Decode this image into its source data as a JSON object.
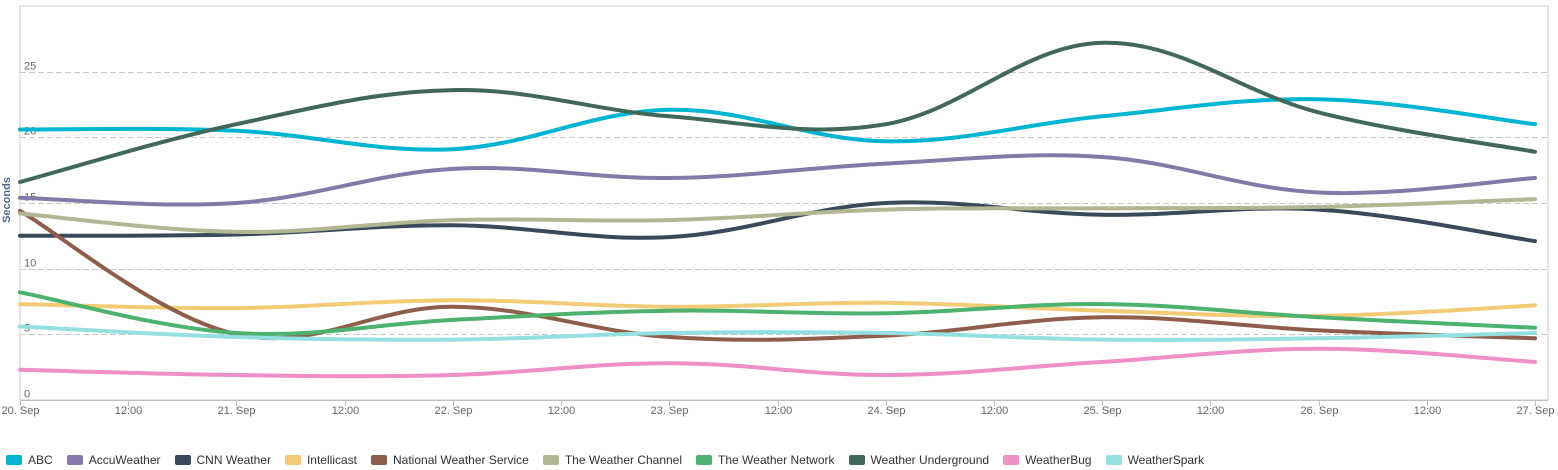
{
  "chart_data": {
    "type": "line",
    "title": "",
    "xlabel": "",
    "ylabel": "Seconds",
    "ylim": [
      0,
      30
    ],
    "y_ticks": [
      0,
      5,
      10,
      15,
      20,
      25
    ],
    "x": [
      0,
      0.5,
      1,
      1.5,
      2,
      2.5,
      3,
      3.5,
      4,
      4.5,
      5,
      5.5,
      6,
      6.5,
      7
    ],
    "x_tick_labels": [
      "20. Sep",
      "12:00",
      "21. Sep",
      "12:00",
      "22. Sep",
      "12:00",
      "23. Sep",
      "12:00",
      "24. Sep",
      "12:00",
      "25. Sep",
      "12:00",
      "26. Sep",
      "12:00",
      "27. Sep"
    ],
    "grid": "horizontal dashed",
    "legend_position": "bottom",
    "series": [
      {
        "name": "ABC",
        "color": "#00b5d1",
        "x": [
          0,
          1,
          2,
          3,
          4,
          5,
          6,
          7
        ],
        "values": [
          20.6,
          20.5,
          19.1,
          22.1,
          19.7,
          21.6,
          22.9,
          21.0
        ]
      },
      {
        "name": "AccuWeather",
        "color": "#8579aa",
        "x": [
          0,
          1,
          2,
          3,
          4,
          5,
          6,
          7
        ],
        "values": [
          15.4,
          15.0,
          17.6,
          16.9,
          18.0,
          18.5,
          15.8,
          16.9
        ]
      },
      {
        "name": "CNN Weather",
        "color": "#3c4959",
        "x": [
          0,
          1,
          2,
          3,
          4,
          5,
          6,
          7
        ],
        "values": [
          12.5,
          12.6,
          13.3,
          12.4,
          15.0,
          14.1,
          14.5,
          12.1
        ]
      },
      {
        "name": "Intellicast",
        "color": "#f2cb76",
        "x": [
          0,
          1,
          2,
          3,
          4,
          5,
          6,
          7
        ],
        "values": [
          7.3,
          7.0,
          7.6,
          7.1,
          7.4,
          6.8,
          6.4,
          7.2
        ]
      },
      {
        "name": "National Weather Service",
        "color": "#8f5e4b",
        "x": [
          0,
          1,
          2,
          3,
          4,
          5,
          6,
          7
        ],
        "values": [
          14.4,
          5.0,
          7.1,
          4.8,
          4.9,
          6.3,
          5.3,
          4.7
        ]
      },
      {
        "name": "The Weather Channel",
        "color": "#b2b791",
        "x": [
          0,
          1,
          2,
          3,
          4,
          5,
          6,
          7
        ],
        "values": [
          14.2,
          12.8,
          13.7,
          13.7,
          14.5,
          14.6,
          14.7,
          15.3
        ]
      },
      {
        "name": "The Weather Network",
        "color": "#4db26e",
        "x": [
          0,
          1,
          2,
          3,
          4,
          5,
          6,
          7
        ],
        "values": [
          8.2,
          5.1,
          6.1,
          6.8,
          6.6,
          7.3,
          6.3,
          5.5
        ]
      },
      {
        "name": "Weather Underground",
        "color": "#41695a",
        "x": [
          0,
          1,
          2,
          3,
          4,
          5,
          6,
          7
        ],
        "values": [
          16.6,
          21.0,
          23.6,
          21.6,
          21.0,
          27.2,
          21.9,
          18.9
        ]
      },
      {
        "name": "WeatherBug",
        "color": "#ef8fc4",
        "x": [
          0,
          1,
          2,
          3,
          4,
          5,
          6,
          7
        ],
        "values": [
          2.3,
          1.9,
          1.9,
          2.8,
          1.9,
          2.9,
          3.9,
          2.9
        ]
      },
      {
        "name": "WeatherSpark",
        "color": "#94e0e0",
        "x": [
          0,
          1,
          2,
          3,
          4,
          5,
          6,
          7
        ],
        "values": [
          5.6,
          4.8,
          4.6,
          5.1,
          5.1,
          4.6,
          4.7,
          5.1
        ]
      }
    ]
  }
}
